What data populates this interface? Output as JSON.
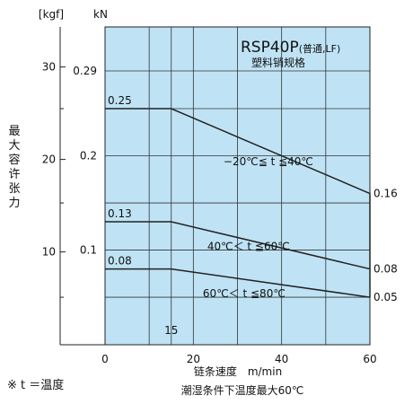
{
  "chart_data": {
    "type": "line",
    "title": "RSP40P",
    "title_suffix": "(普通,LF)",
    "subtitle": "塑料销规格",
    "xlabel": "链条速度　m/min",
    "xlabel_sub": "潮湿条件下温度最大60℃",
    "ylabel": "最大容许张力",
    "y_unit_kgf": "[kgf]",
    "y_unit_kn": "kN",
    "xlim": [
      0,
      60
    ],
    "ylim_kn": [
      0,
      0.5
    ],
    "x_ticks": [
      0,
      20,
      40,
      60
    ],
    "x_grid": [
      10,
      15,
      20,
      30,
      40,
      50
    ],
    "x_marker_label": "15",
    "kn_ticks": [
      {
        "value": 0.29,
        "label": "0.29"
      },
      {
        "value": 0.2,
        "label": "0.2"
      },
      {
        "value": 0.1,
        "label": "0.1"
      }
    ],
    "kgf_ticks": [
      {
        "value": 30,
        "label": "30"
      },
      {
        "value": 20,
        "label": "20"
      },
      {
        "value": 10,
        "label": "10"
      }
    ],
    "minor_ticks_kn": [
      0.25,
      0.15,
      0.05
    ],
    "series": [
      {
        "name": "−20℃≦ t ≦40℃",
        "x": [
          0,
          15,
          60
        ],
        "y": [
          0.25,
          0.25,
          0.16
        ],
        "start_label": "0.25",
        "end_label": "0.16"
      },
      {
        "name": "40℃＜ t ≦60℃",
        "x": [
          0,
          15,
          60
        ],
        "y": [
          0.13,
          0.13,
          0.08
        ],
        "start_label": "0.13",
        "end_label": "0.08"
      },
      {
        "name": "60℃＜ t ≦80℃",
        "x": [
          0,
          15,
          60
        ],
        "y": [
          0.08,
          0.08,
          0.05
        ],
        "start_label": "0.08",
        "end_label": "0.05"
      }
    ],
    "grid": true,
    "legend": "none"
  },
  "footnote": "※ t ＝温度"
}
